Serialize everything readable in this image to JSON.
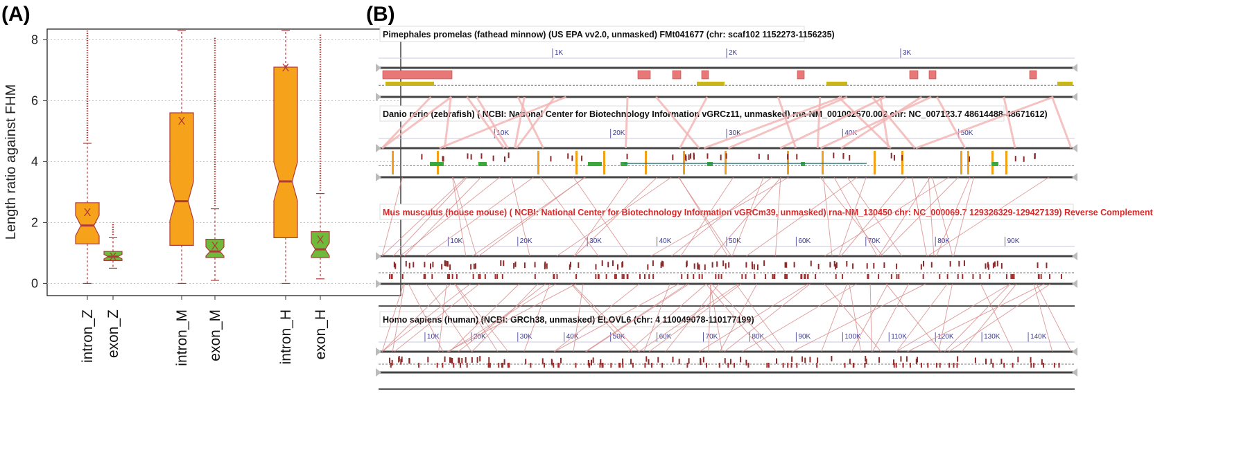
{
  "panelA": {
    "label": "(A)",
    "chart_data": {
      "type": "box",
      "title": "",
      "xlabel": "",
      "ylabel": "Length ratio against FHM",
      "ylim": [
        -0.4,
        8.35
      ],
      "yticks": [
        "0",
        "2",
        "4",
        "6",
        "8"
      ],
      "grid": "horizontal dotted",
      "categories": [
        "intron_Z",
        "exon_Z",
        "intron_M",
        "exon_M",
        "intron_H",
        "exon_H"
      ],
      "boxes": [
        {
          "category": "intron_Z",
          "fill": "#f7a21b",
          "whisker_low": 0.0,
          "q1": 1.3,
          "median": 1.9,
          "q3": 2.65,
          "whisker_high": 4.6,
          "mean": 2.35,
          "outlier_max": 8.3
        },
        {
          "category": "exon_Z",
          "fill": "#6fba3a",
          "whisker_low": 0.5,
          "q1": 0.75,
          "median": 0.88,
          "q3": 1.05,
          "whisker_high": 1.5,
          "mean": 0.9,
          "outlier_max": 2.0
        },
        {
          "category": "intron_M",
          "fill": "#f7a21b",
          "whisker_low": 0.0,
          "q1": 1.25,
          "median": 2.7,
          "q3": 5.6,
          "whisker_high": 8.3,
          "mean": 5.35,
          "outlier_max": null
        },
        {
          "category": "exon_M",
          "fill": "#6fba3a",
          "whisker_low": 0.1,
          "q1": 0.85,
          "median": 1.05,
          "q3": 1.45,
          "whisker_high": 2.45,
          "mean": 1.25,
          "outlier_max": 8.1
        },
        {
          "category": "intron_H",
          "fill": "#f7a21b",
          "whisker_low": 0.0,
          "q1": 1.5,
          "median": 3.35,
          "q3": 7.1,
          "whisker_high": 8.3,
          "mean": 7.1,
          "outlier_max": null
        },
        {
          "category": "exon_H",
          "fill": "#6fba3a",
          "whisker_low": 0.15,
          "q1": 0.85,
          "median": 1.12,
          "q3": 1.7,
          "whisker_high": 2.95,
          "mean": 1.45,
          "outlier_max": 8.2
        }
      ],
      "mean_marker": "X"
    }
  },
  "panelB": {
    "label": "(B)",
    "tracks": [
      {
        "title": "Pimephales promelas (fathead minnow) (US EPA vv2.0, unmasked) FMt041677 (chr: scaf102 1152273-1156235)",
        "title_color": "#111111",
        "ruler_labels": [
          "1K",
          "2K",
          "3K"
        ]
      },
      {
        "title": "Danio rerio (zebrafish) ( NCBI: National Center for Biotechnology Information vGRCz11, unmasked) rna-NM_001002570.002 chr: NC_007123.7 48614488-48671612)",
        "title_color": "#111111",
        "ruler_labels": [
          "10K",
          "20K",
          "30K",
          "40K",
          "50K"
        ]
      },
      {
        "title": "Mus musculus (house mouse) ( NCBI: National Center for Biotechnology Information vGRCm39, unmasked) rna-NM_130450 chr: NC_000069.7 129326329-129427139) Reverse Complement",
        "title_color": "#d62828",
        "ruler_labels": [
          "10K",
          "20K",
          "30K",
          "40K",
          "50K",
          "60K",
          "70K",
          "80K",
          "90K"
        ]
      },
      {
        "title": "Homo sapiens (human) (NCBI: GRCh38, unmasked) ELOVL6 (chr: 4 110049078-110177199)",
        "title_color": "#111111",
        "ruler_labels": [
          "10K",
          "20K",
          "30K",
          "40K",
          "50K",
          "60K",
          "70K",
          "80K",
          "90K",
          "100K",
          "110K",
          "120K",
          "130K",
          "140K"
        ]
      }
    ]
  }
}
